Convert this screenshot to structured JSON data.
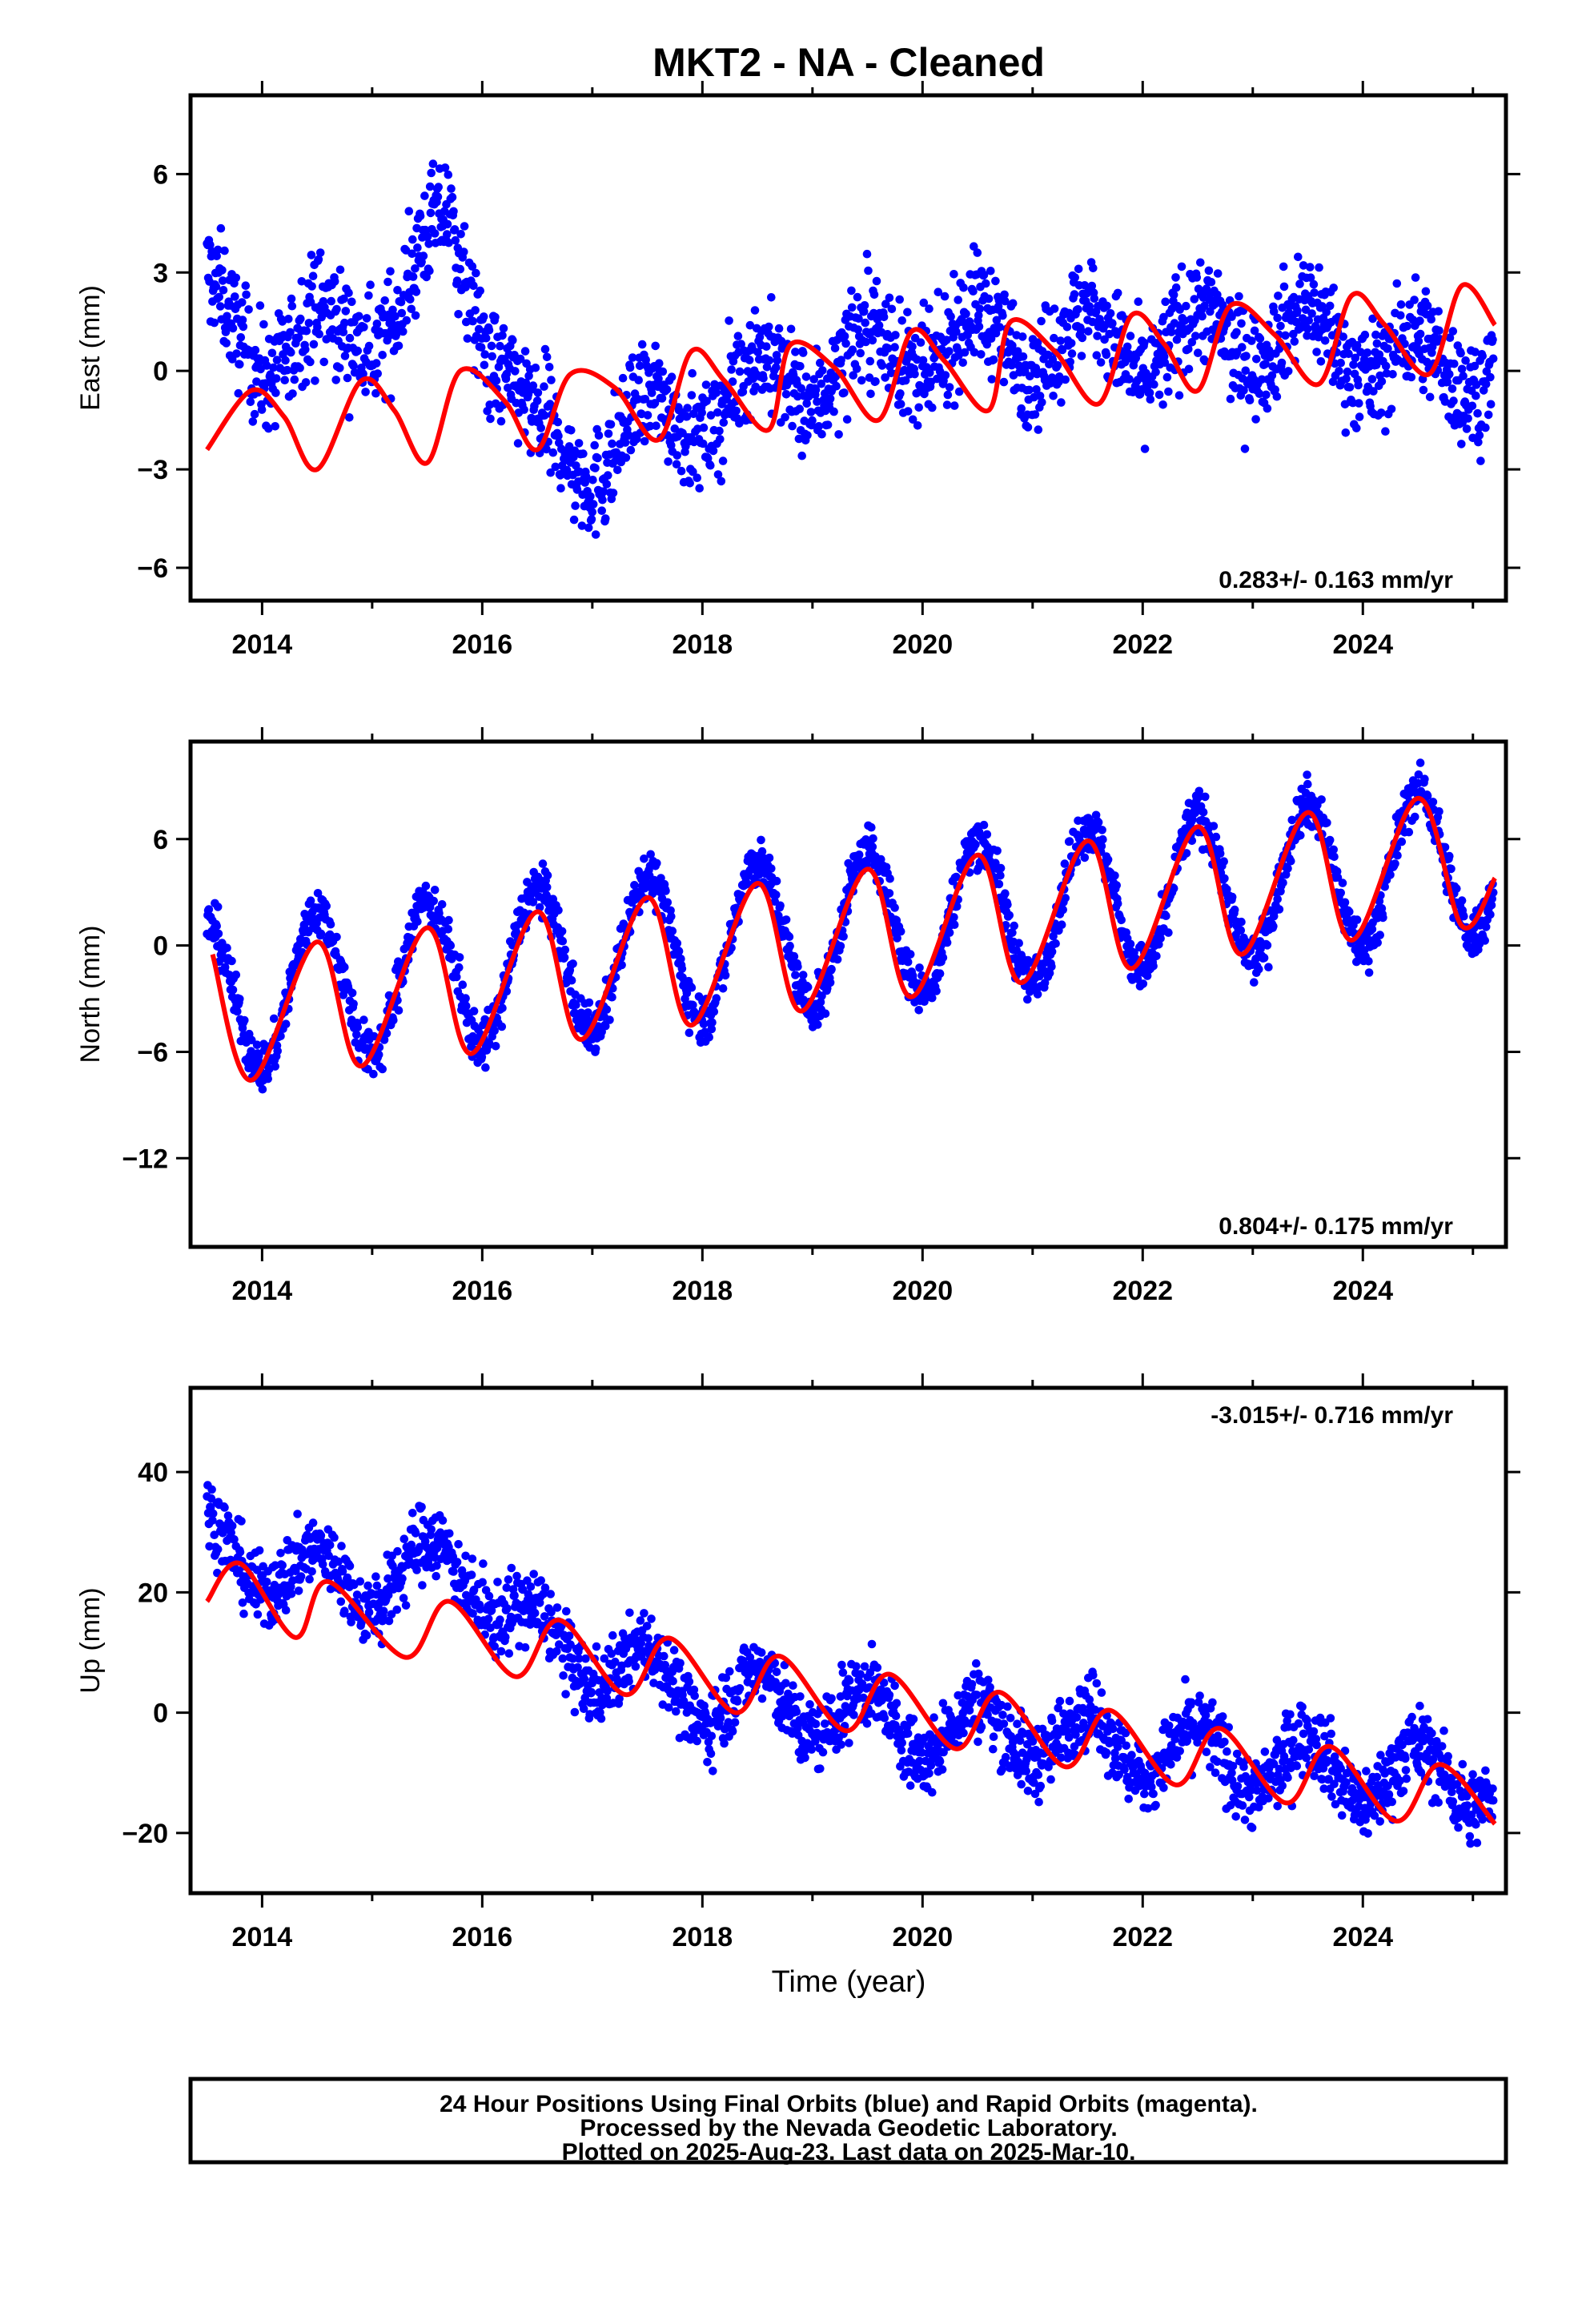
{
  "title": "MKT2  - NA - Cleaned",
  "xlabel": "Time (year)",
  "footer": [
    "24 Hour Positions Using Final Orbits (blue) and Rapid Orbits (magenta).",
    "Processed by the Nevada Geodetic Laboratory.",
    "Plotted on 2025-Aug-23. Last data on 2025-Mar-10."
  ],
  "colors": {
    "points": "#0000ff",
    "model": "#ff0000",
    "frame": "#000000"
  },
  "chart_data": [
    {
      "type": "scatter",
      "component": "east",
      "ylabel": "East (mm)",
      "xlim": [
        2013.35,
        2025.3
      ],
      "ylim": [
        -7,
        8.4
      ],
      "xticks": [
        2014,
        2016,
        2018,
        2020,
        2022,
        2024
      ],
      "yticks": [
        -6,
        -3,
        0,
        3,
        6
      ],
      "rate_text": "0.283+/- 0.163 mm/yr",
      "grid": false,
      "series": [
        {
          "points": {
            "start": 2013.5,
            "end": 2025.19,
            "trend": [
              [
                2013.5,
                2.0
              ],
              [
                2014.2,
                0.5
              ],
              [
                2015.3,
                2.0
              ],
              [
                2015.7,
                4.5
              ],
              [
                2016.1,
                1.0
              ],
              [
                2016.5,
                -2.5
              ],
              [
                2017.0,
                -2.5
              ],
              [
                2018.0,
                -1.0
              ],
              [
                2019.0,
                0.0
              ],
              [
                2020.0,
                0.8
              ],
              [
                2021.0,
                1.0
              ],
              [
                2022.0,
                0.8
              ],
              [
                2023.0,
                1.2
              ],
              [
                2024.0,
                0.8
              ],
              [
                2024.6,
                0.0
              ],
              [
                2025.19,
                0.5
              ]
            ],
            "annual_amp": 1.0,
            "spread": 1.2
          }
        },
        {
          "model": [
            [
              2013.5,
              -2.4
            ],
            [
              2013.9,
              -0.6
            ],
            [
              2014.2,
              -1.4
            ],
            [
              2014.5,
              -3.0
            ],
            [
              2014.9,
              -0.3
            ],
            [
              2015.2,
              -1.2
            ],
            [
              2015.5,
              -2.8
            ],
            [
              2015.8,
              0.0
            ],
            [
              2016.2,
              -0.9
            ],
            [
              2016.5,
              -2.4
            ],
            [
              2016.8,
              -0.1
            ],
            [
              2017.2,
              -0.5
            ],
            [
              2017.6,
              -2.1
            ],
            [
              2017.9,
              0.6
            ],
            [
              2018.2,
              -0.3
            ],
            [
              2018.6,
              -1.8
            ],
            [
              2018.8,
              0.8
            ],
            [
              2019.2,
              0.1
            ],
            [
              2019.6,
              -1.5
            ],
            [
              2019.9,
              1.2
            ],
            [
              2020.2,
              0.3
            ],
            [
              2020.6,
              -1.2
            ],
            [
              2020.8,
              1.5
            ],
            [
              2021.2,
              0.6
            ],
            [
              2021.6,
              -1.0
            ],
            [
              2021.9,
              1.7
            ],
            [
              2022.2,
              0.8
            ],
            [
              2022.5,
              -0.6
            ],
            [
              2022.8,
              2.0
            ],
            [
              2023.2,
              1.1
            ],
            [
              2023.6,
              -0.4
            ],
            [
              2023.9,
              2.3
            ],
            [
              2024.2,
              1.4
            ],
            [
              2024.6,
              -0.1
            ],
            [
              2024.9,
              2.6
            ],
            [
              2025.2,
              1.4
            ]
          ]
        }
      ]
    },
    {
      "type": "scatter",
      "component": "north",
      "ylabel": "North (mm)",
      "xlim": [
        2013.35,
        2025.3
      ],
      "ylim": [
        -17,
        11.5
      ],
      "xticks": [
        2014,
        2016,
        2018,
        2020,
        2022,
        2024
      ],
      "yticks": [
        -12,
        -6,
        0,
        6
      ],
      "rate_text": "0.804+/- 0.175 mm/yr",
      "grid": false,
      "series": [
        {
          "points": {
            "start": 2013.5,
            "end": 2025.19,
            "trend": [
              [
                2013.5,
                -3.0
              ],
              [
                2025.19,
                5.0
              ]
            ],
            "annual_amp": 4.2,
            "spread": 1.0
          }
        },
        {
          "model": [
            [
              2013.55,
              -0.5
            ],
            [
              2013.9,
              -7.6
            ],
            [
              2014.5,
              0.2
            ],
            [
              2014.9,
              -6.8
            ],
            [
              2015.5,
              1.0
            ],
            [
              2015.9,
              -6.1
            ],
            [
              2016.5,
              1.9
            ],
            [
              2016.9,
              -5.3
            ],
            [
              2017.5,
              2.7
            ],
            [
              2017.9,
              -4.5
            ],
            [
              2018.5,
              3.5
            ],
            [
              2018.9,
              -3.7
            ],
            [
              2019.5,
              4.3
            ],
            [
              2019.9,
              -2.9
            ],
            [
              2020.5,
              5.1
            ],
            [
              2020.9,
              -2.1
            ],
            [
              2021.5,
              5.9
            ],
            [
              2021.9,
              -1.3
            ],
            [
              2022.5,
              6.7
            ],
            [
              2022.9,
              -0.5
            ],
            [
              2023.5,
              7.5
            ],
            [
              2023.9,
              0.3
            ],
            [
              2024.5,
              8.3
            ],
            [
              2024.9,
              1.1
            ],
            [
              2025.2,
              3.8
            ]
          ]
        }
      ]
    },
    {
      "type": "scatter",
      "component": "up",
      "ylabel": "Up (mm)",
      "xlim": [
        2013.35,
        2025.3
      ],
      "ylim": [
        -30,
        54
      ],
      "xticks": [
        2014,
        2016,
        2018,
        2020,
        2022,
        2024
      ],
      "yticks": [
        -20,
        0,
        20,
        40
      ],
      "rate_text": "-3.015+/- 0.716 mm/yr",
      "grid": false,
      "series": [
        {
          "points": {
            "start": 2013.5,
            "end": 2025.19,
            "trend": [
              [
                2013.5,
                28.0
              ],
              [
                2014.5,
                22.0
              ],
              [
                2015.0,
                22.0
              ],
              [
                2015.8,
                25.0
              ],
              [
                2016.5,
                12.0
              ],
              [
                2018.0,
                3.0
              ],
              [
                2019.0,
                1.0
              ],
              [
                2020.0,
                -3.0
              ],
              [
                2021.0,
                -3.0
              ],
              [
                2022.0,
                -6.0
              ],
              [
                2023.0,
                -8.0
              ],
              [
                2024.0,
                -10.0
              ],
              [
                2025.19,
                -11.0
              ]
            ],
            "annual_amp": 5.0,
            "spread": 4.5
          }
        },
        {
          "model": [
            [
              2013.5,
              18.5
            ],
            [
              2013.8,
              24.8
            ],
            [
              2014.3,
              12.5
            ],
            [
              2014.6,
              21.8
            ],
            [
              2015.3,
              9.2
            ],
            [
              2015.7,
              18.5
            ],
            [
              2016.3,
              6.0
            ],
            [
              2016.7,
              15.4
            ],
            [
              2017.3,
              3.0
            ],
            [
              2017.7,
              12.4
            ],
            [
              2018.3,
              0.0
            ],
            [
              2018.7,
              9.4
            ],
            [
              2019.3,
              -3.0
            ],
            [
              2019.7,
              6.4
            ],
            [
              2020.3,
              -6.0
            ],
            [
              2020.7,
              3.4
            ],
            [
              2021.3,
              -9.0
            ],
            [
              2021.7,
              0.4
            ],
            [
              2022.3,
              -12.0
            ],
            [
              2022.7,
              -2.6
            ],
            [
              2023.3,
              -15.0
            ],
            [
              2023.7,
              -5.6
            ],
            [
              2024.3,
              -18.0
            ],
            [
              2024.7,
              -8.6
            ],
            [
              2025.2,
              -18.5
            ]
          ]
        }
      ]
    }
  ]
}
